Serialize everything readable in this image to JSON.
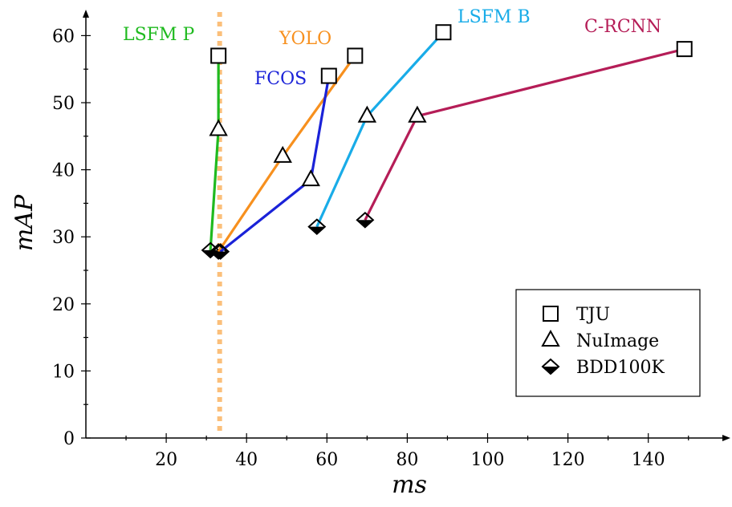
{
  "chart_data": {
    "type": "line",
    "xlabel": "ms",
    "ylabel": "mAP",
    "xlim": [
      0,
      158
    ],
    "ylim": [
      0,
      64
    ],
    "xticks": [
      20,
      40,
      60,
      80,
      100,
      120,
      140
    ],
    "yticks": [
      0,
      10,
      20,
      30,
      40,
      50,
      60
    ],
    "grid": false,
    "legend_position": "bottom-right",
    "legend": [
      {
        "label": "TJU",
        "marker": "square"
      },
      {
        "label": "NuImage",
        "marker": "triangle"
      },
      {
        "label": "BDD100K",
        "marker": "diamond-half"
      }
    ],
    "reference_line": {
      "x": 33.3,
      "style": "dotted",
      "color": "#fbbf7a"
    },
    "series": [
      {
        "name": "LSFM P",
        "color": "#1fba1f",
        "points": [
          {
            "x": 31,
            "y": 28,
            "marker": "diamond-half"
          },
          {
            "x": 33,
            "y": 46,
            "marker": "triangle"
          },
          {
            "x": 33,
            "y": 57,
            "marker": "square"
          }
        ]
      },
      {
        "name": "YOLO",
        "color": "#f7901e",
        "points": [
          {
            "x": 33,
            "y": 27.8,
            "marker": "diamond-half"
          },
          {
            "x": 49,
            "y": 42,
            "marker": "triangle"
          },
          {
            "x": 67,
            "y": 57,
            "marker": "square"
          }
        ]
      },
      {
        "name": "FCOS",
        "color": "#1a22d8",
        "points": [
          {
            "x": 33.5,
            "y": 27.8,
            "marker": "diamond-half"
          },
          {
            "x": 56,
            "y": 38.5,
            "marker": "triangle"
          },
          {
            "x": 60.5,
            "y": 54,
            "marker": "square"
          }
        ]
      },
      {
        "name": "LSFM B",
        "color": "#19ace8",
        "points": [
          {
            "x": 57.5,
            "y": 31.5,
            "marker": "diamond-half"
          },
          {
            "x": 70,
            "y": 48,
            "marker": "triangle"
          },
          {
            "x": 89,
            "y": 60.5,
            "marker": "square"
          }
        ]
      },
      {
        "name": "C-RCNN",
        "color": "#b51d57",
        "points": [
          {
            "x": 69.5,
            "y": 32.5,
            "marker": "diamond-half"
          },
          {
            "x": 82.5,
            "y": 48,
            "marker": "triangle"
          },
          {
            "x": 149,
            "y": 58,
            "marker": "square"
          }
        ]
      }
    ]
  }
}
